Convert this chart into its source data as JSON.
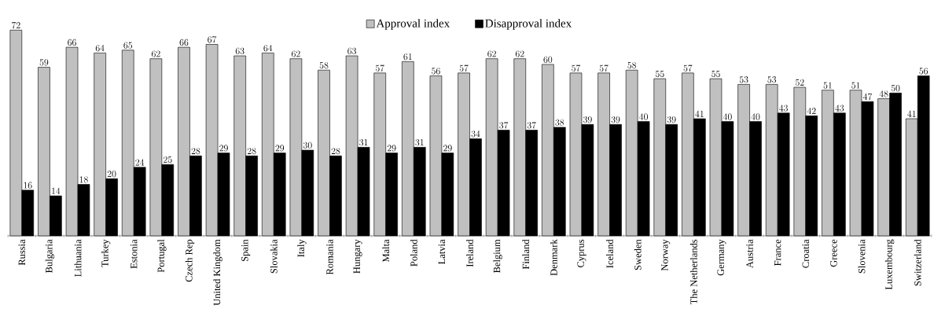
{
  "chart_data": {
    "type": "bar",
    "data_labels": true,
    "legend": "top",
    "categories": [
      "Russia",
      "Bulgaria",
      "Lithuania",
      "Turkey",
      "Estonia",
      "Portugal",
      "Czech Rep",
      "United Kingdom",
      "Spain",
      "Slovakia",
      "Italy",
      "Romania",
      "Hungary",
      "Malta",
      "Poland",
      "Latvia",
      "Ireland",
      "Belgium",
      "Finland",
      "Denmark",
      "Cyprus",
      "Iceland",
      "Sweden",
      "Norway",
      "The Netherlands",
      "Germany",
      "Austria",
      "France",
      "Croatia",
      "Greece",
      "Slovenia",
      "Luxembourg",
      "Switzerland"
    ],
    "series": [
      {
        "name": "Approval index",
        "color": "#c0c0c0",
        "values": [
          72,
          59,
          66,
          64,
          65,
          62,
          66,
          67,
          63,
          64,
          62,
          58,
          63,
          57,
          61,
          56,
          57,
          62,
          62,
          60,
          57,
          57,
          58,
          55,
          57,
          55,
          53,
          53,
          52,
          51,
          51,
          48,
          41
        ]
      },
      {
        "name": "Disapproval index",
        "color": "#000000",
        "values": [
          16,
          14,
          18,
          20,
          24,
          25,
          28,
          29,
          28,
          29,
          30,
          28,
          31,
          29,
          31,
          29,
          34,
          37,
          37,
          38,
          39,
          39,
          40,
          39,
          41,
          40,
          40,
          43,
          42,
          43,
          47,
          50,
          56
        ]
      }
    ]
  }
}
